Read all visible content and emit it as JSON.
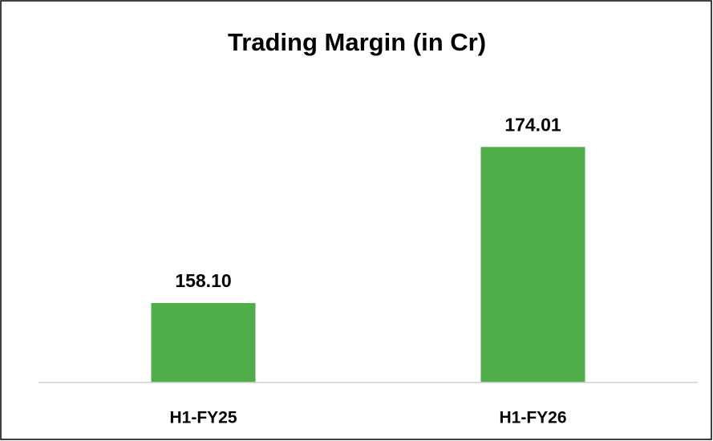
{
  "chart_data": {
    "type": "bar",
    "title": "Trading Margin (in Cr)",
    "categories": [
      "H1-FY25",
      "H1-FY26"
    ],
    "values": [
      158.1,
      174.01
    ],
    "value_labels": [
      "158.10",
      "174.01"
    ],
    "color": "#4fae4a",
    "ylim": [
      150,
      180
    ]
  }
}
